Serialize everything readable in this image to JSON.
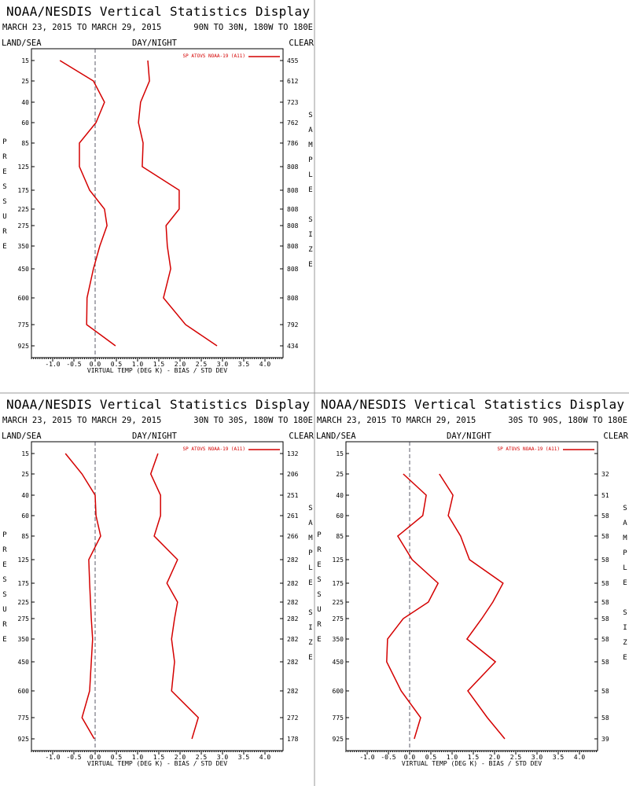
{
  "chart_data": [
    {
      "type": "line",
      "title": "NOAA/NESDIS Vertical Statistics Display",
      "subtitle": "MARCH 23, 2015 TO MARCH 29, 2015",
      "region": "90N TO 30N, 180W TO 180E",
      "land_sea": "LAND/SEA",
      "day_night": "DAY/NIGHT",
      "clear": "CLEAR",
      "y_label": "PRESSURE",
      "y2_label": "SAMPLE SIZE",
      "x_label": "VIRTUAL TEMP (DEG K) - BIAS / STD DEV",
      "categories": [
        15,
        25,
        40,
        60,
        85,
        125,
        175,
        225,
        275,
        350,
        450,
        600,
        775,
        925
      ],
      "sample_sizes": [
        455,
        612,
        723,
        762,
        786,
        808,
        808,
        808,
        808,
        808,
        808,
        808,
        792,
        434
      ],
      "series": [
        {
          "name": "SP ATOVS NOAA-19 (A11)",
          "color": "#d40000",
          "values": [
            -0.83,
            -0.04,
            0.22,
            0.02,
            -0.37,
            -0.37,
            -0.13,
            0.22,
            0.28,
            0.11,
            -0.04,
            -0.19,
            -0.2,
            0.48
          ],
          "std_dev": [
            1.24,
            1.28,
            1.07,
            1.02,
            1.13,
            1.11,
            1.98,
            1.98,
            1.67,
            1.7,
            1.78,
            1.61,
            2.13,
            2.87
          ]
        }
      ],
      "xlim": [
        -1.5,
        4.5
      ],
      "xticks": [
        {
          "value": -1,
          "label": "-1.0"
        },
        -0.5,
        {
          "value": 0,
          "label": "0.0"
        },
        0.5,
        {
          "value": 1,
          "label": "1.0"
        },
        1.5,
        {
          "value": 2,
          "label": "2.0"
        },
        2.5,
        {
          "value": 3,
          "label": "3.0"
        },
        3.5,
        {
          "value": 4,
          "label": "4.0"
        }
      ]
    },
    {
      "type": "line",
      "title": "NOAA/NESDIS Vertical Statistics Display",
      "subtitle": "MARCH 23, 2015 TO MARCH 29, 2015",
      "region": "30N TO 30S, 180W TO 180E",
      "land_sea": "LAND/SEA",
      "day_night": "DAY/NIGHT",
      "clear": "CLEAR",
      "y_label": "PRESSURE",
      "y2_label": "SAMPLE SIZE",
      "x_label": "VIRTUAL TEMP (DEG K) - BIAS / STD DEV",
      "categories": [
        15,
        25,
        40,
        60,
        85,
        125,
        175,
        225,
        275,
        350,
        450,
        600,
        775,
        925
      ],
      "sample_sizes": [
        132,
        206,
        251,
        261,
        266,
        282,
        282,
        282,
        282,
        282,
        282,
        282,
        272,
        178
      ],
      "series": [
        {
          "name": "SP ATOVS NOAA-19 (A11)",
          "color": "#d40000",
          "values": [
            -0.7,
            -0.31,
            0,
            0.02,
            0.13,
            -0.15,
            -0.13,
            -0.11,
            -0.09,
            -0.06,
            -0.09,
            -0.13,
            -0.31,
            -0.02
          ],
          "std_dev": [
            1.48,
            1.31,
            1.54,
            1.54,
            1.39,
            1.94,
            1.69,
            1.94,
            1.87,
            1.8,
            1.87,
            1.8,
            2.43,
            2.28
          ]
        }
      ],
      "xlim": [
        -1.5,
        4.5
      ],
      "xticks": [
        {
          "value": -1,
          "label": "-1.0"
        },
        -0.5,
        {
          "value": 0,
          "label": "0.0"
        },
        0.5,
        {
          "value": 1,
          "label": "1.0"
        },
        1.5,
        {
          "value": 2,
          "label": "2.0"
        },
        2.5,
        {
          "value": 3,
          "label": "3.0"
        },
        3.5,
        {
          "value": 4,
          "label": "4.0"
        }
      ]
    },
    {
      "type": "line",
      "title": "NOAA/NESDIS Vertical Statistics Display",
      "subtitle": "MARCH 23, 2015 TO MARCH 29, 2015",
      "region": "30S TO 90S, 180W TO 180E",
      "land_sea": "LAND/SEA",
      "day_night": "DAY/NIGHT",
      "clear": "CLEAR",
      "y_label": "PRESSURE",
      "y2_label": "SAMPLE SIZE",
      "x_label": "VIRTUAL TEMP (DEG K) - BIAS / STD DEV",
      "categories": [
        15,
        25,
        40,
        60,
        85,
        125,
        175,
        225,
        275,
        350,
        450,
        600,
        775,
        925
      ],
      "sample_sizes": [
        null,
        32,
        51,
        58,
        58,
        58,
        58,
        58,
        58,
        58,
        58,
        58,
        58,
        39
      ],
      "series": [
        {
          "name": "SP ATOVS NOAA-19 (A11)",
          "color": "#d40000",
          "values": [
            null,
            -0.15,
            0.39,
            0.31,
            -0.28,
            0.06,
            0.67,
            0.44,
            -0.15,
            -0.52,
            -0.54,
            -0.2,
            0.26,
            0.11
          ],
          "std_dev": [
            null,
            0.7,
            1.02,
            0.91,
            1.2,
            1.41,
            2.2,
            1.96,
            1.7,
            1.35,
            2.02,
            1.37,
            1.83,
            2.24
          ]
        }
      ],
      "xlim": [
        -1.5,
        4.5
      ],
      "xticks": [
        {
          "value": -1,
          "label": "-1.0"
        },
        -0.5,
        {
          "value": 0,
          "label": "0.0"
        },
        0.5,
        {
          "value": 1,
          "label": "1.0"
        },
        1.5,
        {
          "value": 2,
          "label": "2.0"
        },
        2.5,
        {
          "value": 3,
          "label": "3.0"
        },
        3.5,
        {
          "value": 4,
          "label": "4.0"
        }
      ]
    }
  ]
}
